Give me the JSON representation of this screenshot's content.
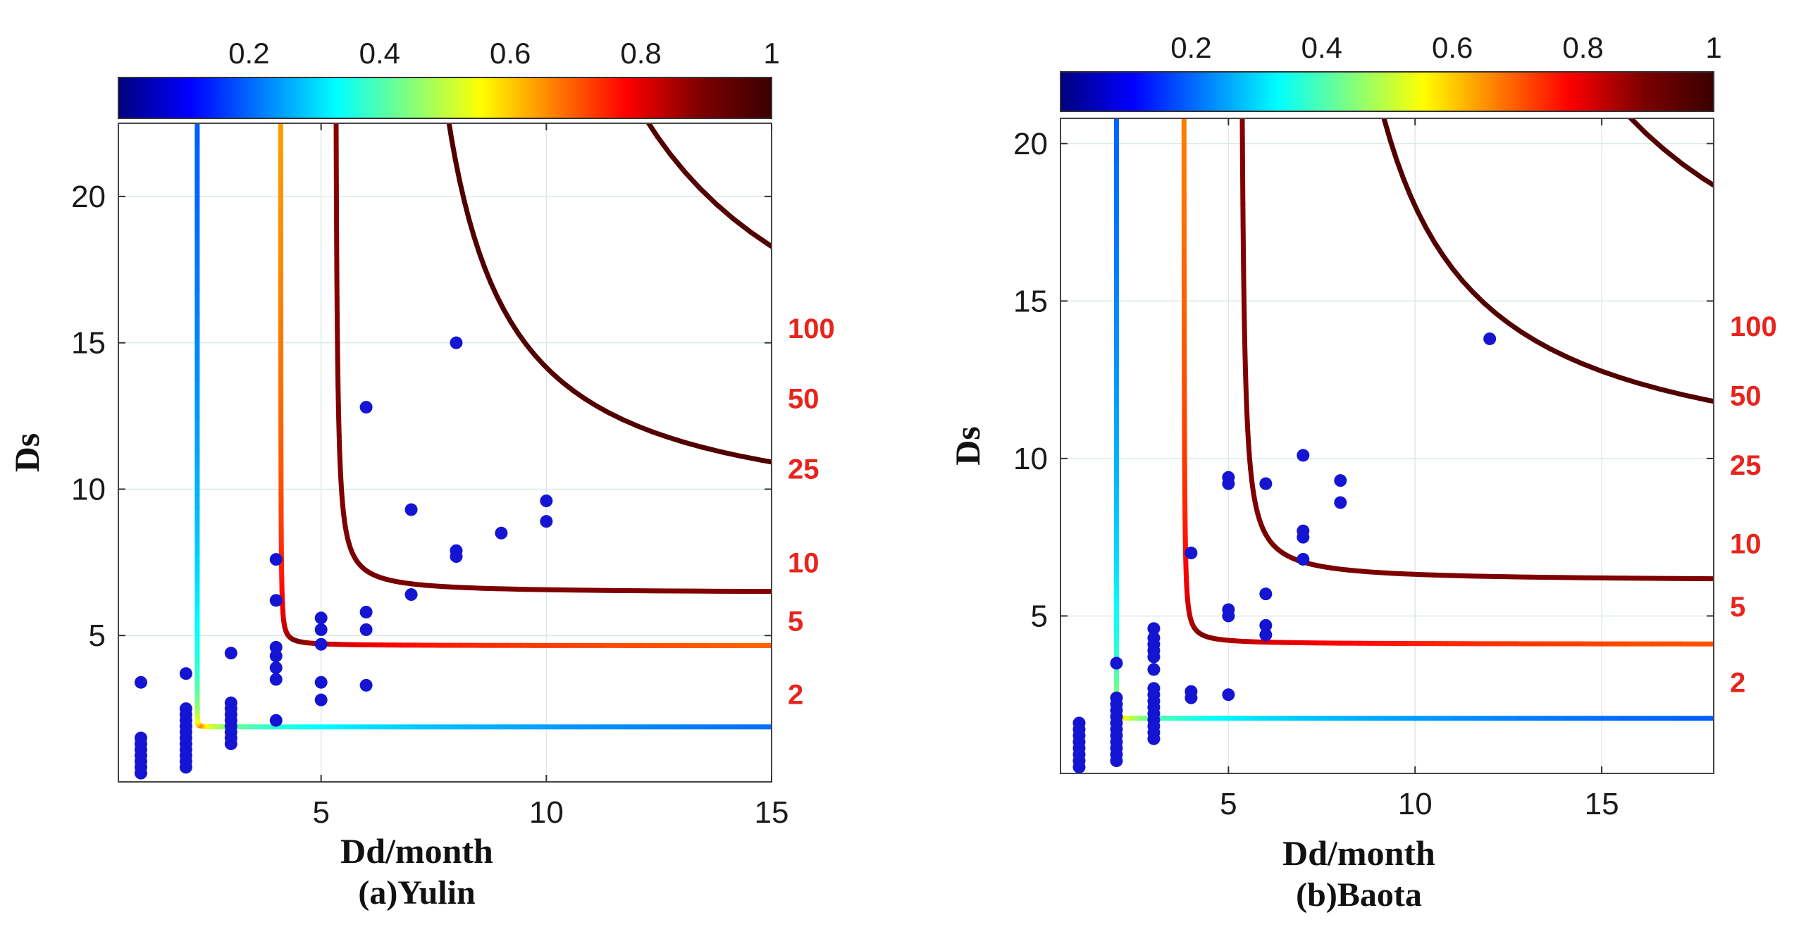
{
  "figure": {
    "colormap": {
      "name": "jet",
      "stops": [
        "#00007f",
        "#0000ff",
        "#007fff",
        "#00ffff",
        "#7fff7f",
        "#ffff00",
        "#ff7f00",
        "#ff0000",
        "#7f0000",
        "#3a0000"
      ]
    },
    "point_color": "#1414d2",
    "grid_color": "#d9ece8",
    "return_period_label_color": "#e8241c"
  },
  "chart_data": [
    {
      "type": "scatter",
      "caption": "(a)Yulin",
      "xlabel": "Dd/month",
      "ylabel": "Ds",
      "xlim": [
        0.5,
        15
      ],
      "ylim": [
        0,
        22.5
      ],
      "xticks": [
        5,
        10,
        15
      ],
      "yticks": [
        5,
        10,
        15,
        20
      ],
      "colorbar": {
        "min": 0,
        "max": 1,
        "ticks": [
          "0.2",
          "0.4",
          "0.6",
          "0.8",
          "1"
        ]
      },
      "contour_lines": [
        {
          "label": "2",
          "x0": 2.25,
          "y0": 1.88,
          "a": 0.04,
          "b": 0.05,
          "prob": 0.5
        },
        {
          "label": "5",
          "x0": 4.1,
          "y0": 4.65,
          "a": 0.3,
          "b": 0.2,
          "prob": 0.8
        },
        {
          "label": "10",
          "x0": 5.3,
          "y0": 6.45,
          "a": 0.9,
          "b": 0.6,
          "prob": 0.9
        },
        {
          "label": "25",
          "x0": 6.4,
          "y0": 8.6,
          "a": 5.0,
          "b": 4.0,
          "prob": 0.96
        },
        {
          "label": "50",
          "x0": 7.4,
          "y0": 10.8,
          "a": 8.5,
          "b": 6.7,
          "prob": 0.98
        },
        {
          "label": "100",
          "x0": 9.2,
          "y0": 12.8,
          "a": 10.5,
          "b": 7.6,
          "prob": 0.99
        }
      ],
      "return_period_labels": [
        {
          "text": "100",
          "y": 15.5
        },
        {
          "text": "50",
          "y": 13.1
        },
        {
          "text": "25",
          "y": 10.7
        },
        {
          "text": "10",
          "y": 7.5
        },
        {
          "text": "5",
          "y": 5.5
        },
        {
          "text": "2",
          "y": 3.0
        }
      ],
      "points": [
        [
          1,
          0.3
        ],
        [
          1,
          0.5
        ],
        [
          1,
          0.7
        ],
        [
          1,
          0.9
        ],
        [
          1,
          1.1
        ],
        [
          1,
          1.3
        ],
        [
          1,
          1.5
        ],
        [
          1,
          3.4
        ],
        [
          2,
          0.5
        ],
        [
          2,
          0.7
        ],
        [
          2,
          0.9
        ],
        [
          2,
          1.1
        ],
        [
          2,
          1.3
        ],
        [
          2,
          1.5
        ],
        [
          2,
          1.7
        ],
        [
          2,
          1.9
        ],
        [
          2,
          2.1
        ],
        [
          2,
          2.3
        ],
        [
          2,
          2.5
        ],
        [
          2,
          3.7
        ],
        [
          3,
          1.3
        ],
        [
          3,
          1.5
        ],
        [
          3,
          1.7
        ],
        [
          3,
          1.9
        ],
        [
          3,
          2.1
        ],
        [
          3,
          2.3
        ],
        [
          3,
          2.5
        ],
        [
          3,
          2.7
        ],
        [
          3,
          4.4
        ],
        [
          4,
          2.1
        ],
        [
          4,
          3.5
        ],
        [
          4,
          3.9
        ],
        [
          4,
          4.3
        ],
        [
          4,
          4.6
        ],
        [
          4,
          6.2
        ],
        [
          4,
          7.6
        ],
        [
          5,
          2.8
        ],
        [
          5,
          3.4
        ],
        [
          5,
          4.7
        ],
        [
          5,
          5.2
        ],
        [
          5,
          5.6
        ],
        [
          6,
          3.3
        ],
        [
          6,
          5.2
        ],
        [
          6,
          5.8
        ],
        [
          6,
          12.8
        ],
        [
          7,
          6.4
        ],
        [
          7,
          9.3
        ],
        [
          8,
          7.7
        ],
        [
          8,
          7.9
        ],
        [
          8,
          15.0
        ],
        [
          9,
          8.5
        ],
        [
          10,
          8.9
        ],
        [
          10,
          9.6
        ]
      ]
    },
    {
      "type": "scatter",
      "caption": "(b)Baota",
      "xlabel": "Dd/month",
      "ylabel": "Ds",
      "xlim": [
        0.5,
        18
      ],
      "ylim": [
        0,
        20.8
      ],
      "xticks": [
        5,
        10,
        15
      ],
      "yticks": [
        5,
        10,
        15,
        20
      ],
      "colorbar": {
        "min": 0,
        "max": 1,
        "ticks": [
          "0.2",
          "0.4",
          "0.6",
          "0.8",
          "1"
        ]
      },
      "contour_lines": [
        {
          "label": "2",
          "x0": 2.0,
          "y0": 1.75,
          "a": 0.04,
          "b": 0.05,
          "prob": 0.5
        },
        {
          "label": "5",
          "x0": 3.8,
          "y0": 4.1,
          "a": 0.5,
          "b": 0.3,
          "prob": 0.8
        },
        {
          "label": "10",
          "x0": 5.3,
          "y0": 6.1,
          "a": 1.3,
          "b": 0.8,
          "prob": 0.9
        },
        {
          "label": "25",
          "x0": 6.5,
          "y0": 9.1,
          "a": 6.0,
          "b": 5.2,
          "prob": 0.96
        },
        {
          "label": "50",
          "x0": 8.2,
          "y0": 11.4,
          "a": 9.5,
          "b": 7.5,
          "prob": 0.98
        },
        {
          "label": "100",
          "x0": 10.3,
          "y0": 14.3,
          "a": 11.0,
          "b": 8.5,
          "prob": 0.99
        }
      ],
      "return_period_labels": [
        {
          "text": "100",
          "y": 14.2
        },
        {
          "text": "50",
          "y": 12.0
        },
        {
          "text": "25",
          "y": 9.8
        },
        {
          "text": "10",
          "y": 7.3
        },
        {
          "text": "5",
          "y": 5.3
        },
        {
          "text": "2",
          "y": 2.9
        }
      ],
      "points": [
        [
          1,
          0.2
        ],
        [
          1,
          0.4
        ],
        [
          1,
          0.6
        ],
        [
          1,
          0.8
        ],
        [
          1,
          1.0
        ],
        [
          1,
          1.2
        ],
        [
          1,
          1.4
        ],
        [
          1,
          1.6
        ],
        [
          2,
          0.4
        ],
        [
          2,
          0.6
        ],
        [
          2,
          0.8
        ],
        [
          2,
          1.0
        ],
        [
          2,
          1.2
        ],
        [
          2,
          1.4
        ],
        [
          2,
          1.6
        ],
        [
          2,
          1.8
        ],
        [
          2,
          2.0
        ],
        [
          2,
          2.2
        ],
        [
          2,
          2.4
        ],
        [
          2,
          3.5
        ],
        [
          3,
          1.1
        ],
        [
          3,
          1.3
        ],
        [
          3,
          1.5
        ],
        [
          3,
          1.7
        ],
        [
          3,
          1.9
        ],
        [
          3,
          2.1
        ],
        [
          3,
          2.3
        ],
        [
          3,
          2.5
        ],
        [
          3,
          2.7
        ],
        [
          3,
          3.3
        ],
        [
          3,
          3.7
        ],
        [
          3,
          3.9
        ],
        [
          3,
          4.1
        ],
        [
          3,
          4.3
        ],
        [
          3,
          4.6
        ],
        [
          4,
          2.4
        ],
        [
          4,
          2.6
        ],
        [
          4,
          7.0
        ],
        [
          5,
          2.5
        ],
        [
          5,
          5.0
        ],
        [
          5,
          5.2
        ],
        [
          5,
          9.2
        ],
        [
          5,
          9.4
        ],
        [
          6,
          4.4
        ],
        [
          6,
          4.7
        ],
        [
          6,
          5.7
        ],
        [
          6,
          9.2
        ],
        [
          7,
          6.8
        ],
        [
          7,
          7.5
        ],
        [
          7,
          7.7
        ],
        [
          7,
          10.1
        ],
        [
          8,
          8.6
        ],
        [
          8,
          9.3
        ],
        [
          12,
          13.8
        ]
      ]
    }
  ]
}
